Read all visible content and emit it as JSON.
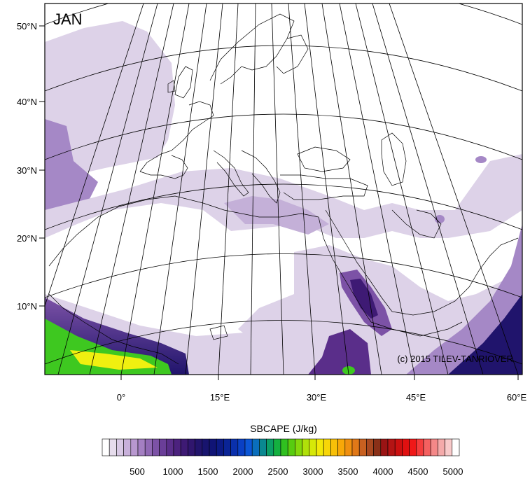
{
  "month": "JAN",
  "credit": "(c) 2015 TILEV-TANRIOVER",
  "lat_labels": [
    "50°N",
    "40°N",
    "30°N",
    "20°N",
    "10°N"
  ],
  "lon_labels": [
    "0°",
    "15°E",
    "30°E",
    "45°E",
    "60°E"
  ],
  "colorbar": {
    "title": "SBCAPE (J/kg)",
    "tick_labels": [
      "500",
      "1000",
      "1500",
      "2000",
      "2500",
      "3000",
      "3500",
      "4000",
      "4500",
      "5000"
    ],
    "colors": [
      "#ffffff",
      "#e6dcec",
      "#d8c8e4",
      "#c8b0da",
      "#b898cf",
      "#a47fc2",
      "#9068b4",
      "#7c52a6",
      "#6a3e98",
      "#5a2e8a",
      "#4c227e",
      "#3e1a74",
      "#30166e",
      "#22146c",
      "#18146e",
      "#101476",
      "#0c1a84",
      "#0a2496",
      "#0a30ac",
      "#0a40c4",
      "#0c56d6",
      "#0a6ebc",
      "#0a8890",
      "#0c9e66",
      "#14b040",
      "#30c020",
      "#58cc10",
      "#84d80c",
      "#b0e00a",
      "#d6e808",
      "#f2e808",
      "#f8d608",
      "#f8c008",
      "#f8a808",
      "#f09010",
      "#e07818",
      "#c86020",
      "#a84820",
      "#8a3018",
      "#9a1414",
      "#b41414",
      "#cc1010",
      "#e01010",
      "#f01818",
      "#f43c3c",
      "#f46060",
      "#f48888",
      "#f4aaaa",
      "#f8caca",
      "#ffffff"
    ]
  },
  "colors": {
    "light_cape": "#ddd2e8",
    "mid_cape": "#c4b0d8",
    "high_cape": "#a588c6",
    "deep_purple": "#5a2e8a",
    "navy": "#20146c",
    "green": "#3ec820",
    "yellow": "#f0f010",
    "coast": "#000000",
    "grid": "#000000"
  }
}
